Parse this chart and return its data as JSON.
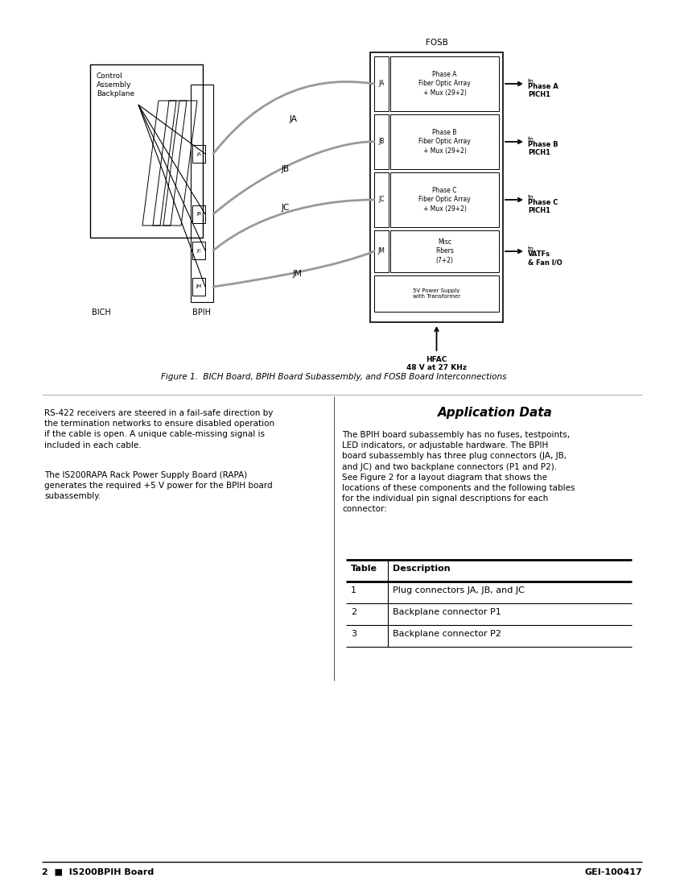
{
  "page_bg": "#ffffff",
  "footer_left": "2  ■  IS200BPIH Board",
  "footer_right": "GEI-100417",
  "figure_caption": "Figure 1.  BICH Board, BPIH Board Subassembly, and FOSB Board Interconnections",
  "fosb_label": "FOSB",
  "hfac_label": "HFAC\n48 V at 27 KHz",
  "control_box_label": "Control\nAssembly\nBackplane",
  "bich_label": "BICH",
  "bpih_label": "BPIH",
  "fosb_boxes": [
    {
      "label": "Phase A\nFiber Optic Array\n+ Mux (29+2)",
      "connector": "JA",
      "arrow_label_top": "to",
      "arrow_label_bot": "Phase A\nPICH1"
    },
    {
      "label": "Phase B\nFiber Optic Array\n+ Mux (29+2)",
      "connector": "JB",
      "arrow_label_top": "to",
      "arrow_label_bot": "Phase B\nPICH1"
    },
    {
      "label": "Phase C\nFiber Optic Array\n+ Mux (29+2)",
      "connector": "JC",
      "arrow_label_top": "to",
      "arrow_label_bot": "Phase C\nPICH1"
    },
    {
      "label": "Misc\nFibers\n(7+2)",
      "connector": "JM",
      "arrow_label_top": "to",
      "arrow_label_bot": "VATFs\n& Fan I/O"
    }
  ],
  "power_supply_label": "5V Power Supply\nwith Transformer",
  "left_text_para1": "RS-422 receivers are steered in a fail-safe direction by\nthe termination networks to ensure disabled operation\nif the cable is open. A unique cable-missing signal is\nincluded in each cable.",
  "left_text_para2": "The IS200RAPA Rack Power Supply Board (RAPA)\ngenerates the required +5 V power for the BPIH board\nsubassembly.",
  "right_title": "Application Data",
  "right_text": "The BPIH board subassembly has no fuses, testpoints,\nLED indicators, or adjustable hardware. The BPIH\nboard subassembly has three plug connectors (JA, JB,\nand JC) and two backplane connectors (P1 and P2).\nSee Figure 2 for a layout diagram that shows the\nlocations of these components and the following tables\nfor the individual pin signal descriptions for each\nconnector:",
  "table_headers": [
    "Table",
    "Description"
  ],
  "table_rows": [
    [
      "1",
      "Plug connectors JA, JB, and JC"
    ],
    [
      "2",
      "Backplane connector P1"
    ],
    [
      "3",
      "Backplane connector P2"
    ]
  ],
  "cable_color": "#999999",
  "cable_lw": 2.0
}
